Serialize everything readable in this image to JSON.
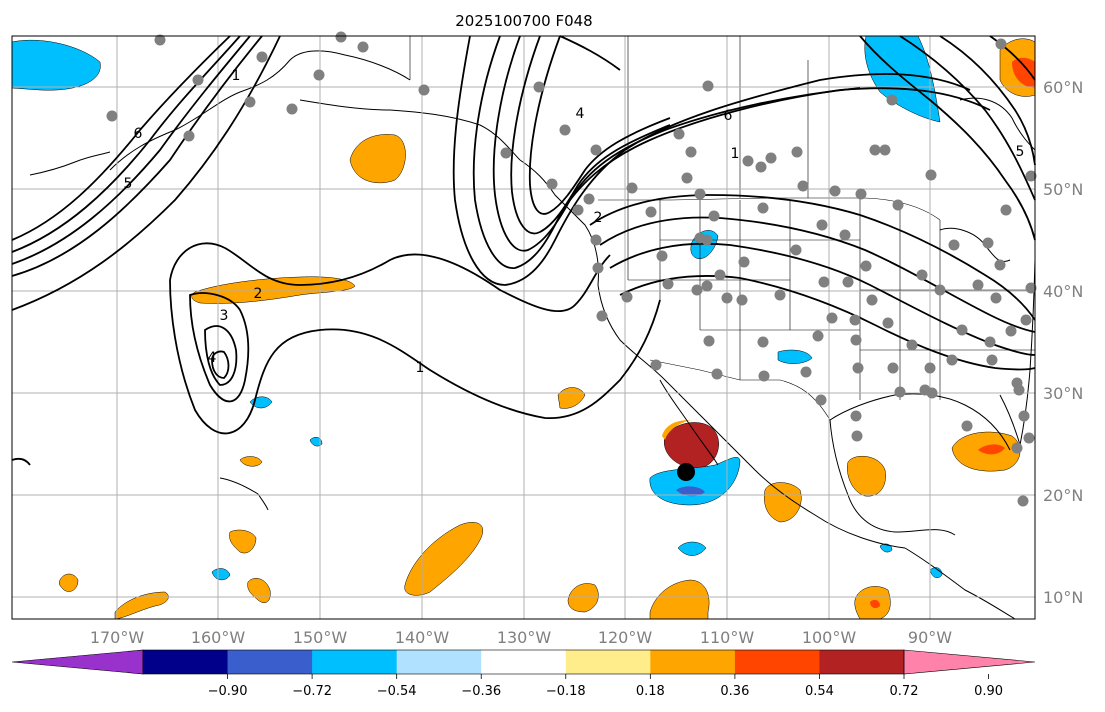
{
  "title": "2025100700 F048",
  "map": {
    "lon_ticks": [
      "170°W",
      "160°W",
      "150°W",
      "140°W",
      "130°W",
      "120°W",
      "110°W",
      "100°W",
      "90°W"
    ],
    "lat_ticks": [
      "60°N",
      "50°N",
      "40°N",
      "30°N",
      "20°N",
      "10°N"
    ],
    "contour_labels": [
      "1",
      "2",
      "3",
      "4",
      "5",
      "6",
      "1",
      "2",
      "4",
      "5",
      "6",
      "1"
    ]
  },
  "colorbar": {
    "ticks": [
      "−0.90",
      "−0.72",
      "−0.54",
      "−0.36",
      "−0.18",
      "0.18",
      "0.36",
      "0.54",
      "0.72",
      "0.90"
    ],
    "colors": [
      "#9932cc",
      "#00008b",
      "#3a5fcd",
      "#00bfff",
      "#b0e2ff",
      "#ffffff",
      "#ffec8b",
      "#ffa500",
      "#ff4500",
      "#b22222",
      "#ff82ab"
    ]
  },
  "colors": {
    "land": "#ffffff",
    "ocean": "#ffffff",
    "grid": "#b0b0b0",
    "stations": "#808080",
    "marker": "#000000"
  }
}
